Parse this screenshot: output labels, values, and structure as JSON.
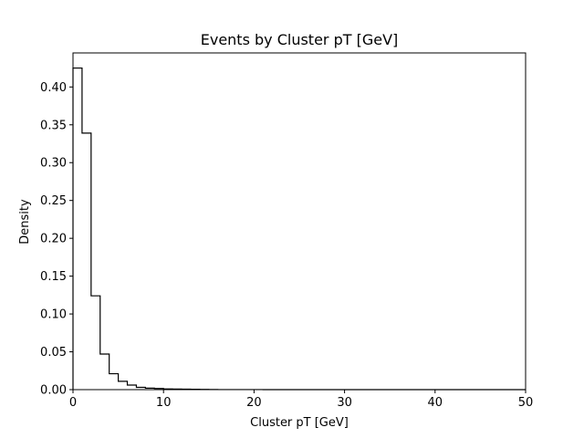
{
  "chart_data": {
    "type": "histogram",
    "title": "Events by Cluster pT [GeV]",
    "xlabel": "Cluster pT [GeV]",
    "ylabel": "Density",
    "xlim": [
      0,
      50
    ],
    "ylim": [
      0,
      0.445
    ],
    "grid": false,
    "x_ticks": [
      0,
      10,
      20,
      30,
      40,
      50
    ],
    "x_tick_labels": [
      "0",
      "10",
      "20",
      "30",
      "40",
      "50"
    ],
    "y_ticks": [
      0,
      0.05,
      0.1,
      0.15,
      0.2,
      0.25,
      0.3,
      0.35,
      0.4
    ],
    "y_tick_labels": [
      "0.00",
      "0.05",
      "0.10",
      "0.15",
      "0.20",
      "0.25",
      "0.30",
      "0.35",
      "0.40"
    ],
    "bin_edges": [
      0,
      1,
      2,
      3,
      4,
      5,
      6,
      7,
      8,
      9,
      10,
      11,
      12,
      13,
      14,
      15,
      16,
      17,
      18,
      19,
      20,
      21,
      22,
      23,
      24,
      25,
      26,
      27,
      28,
      29,
      30,
      31,
      32,
      33,
      34,
      35,
      36,
      37,
      38,
      39,
      40,
      41,
      42,
      43,
      44,
      45,
      46,
      47,
      48,
      49,
      50
    ],
    "values": [
      0.425,
      0.339,
      0.124,
      0.047,
      0.021,
      0.011,
      0.006,
      0.003,
      0.002,
      0.0015,
      0.001,
      0.0008,
      0.0006,
      0.0005,
      0.0004,
      0.0002,
      0.0001,
      0.0001,
      0.0001,
      0.0001,
      0.0001,
      0,
      0,
      0,
      0,
      0,
      0,
      0,
      0,
      0,
      0,
      0,
      0,
      0,
      0,
      0,
      0,
      0,
      0,
      0,
      0,
      0,
      0,
      0,
      0,
      0,
      0,
      0,
      0,
      0
    ],
    "series": [
      {
        "color": "#000000",
        "style": "step"
      }
    ]
  }
}
